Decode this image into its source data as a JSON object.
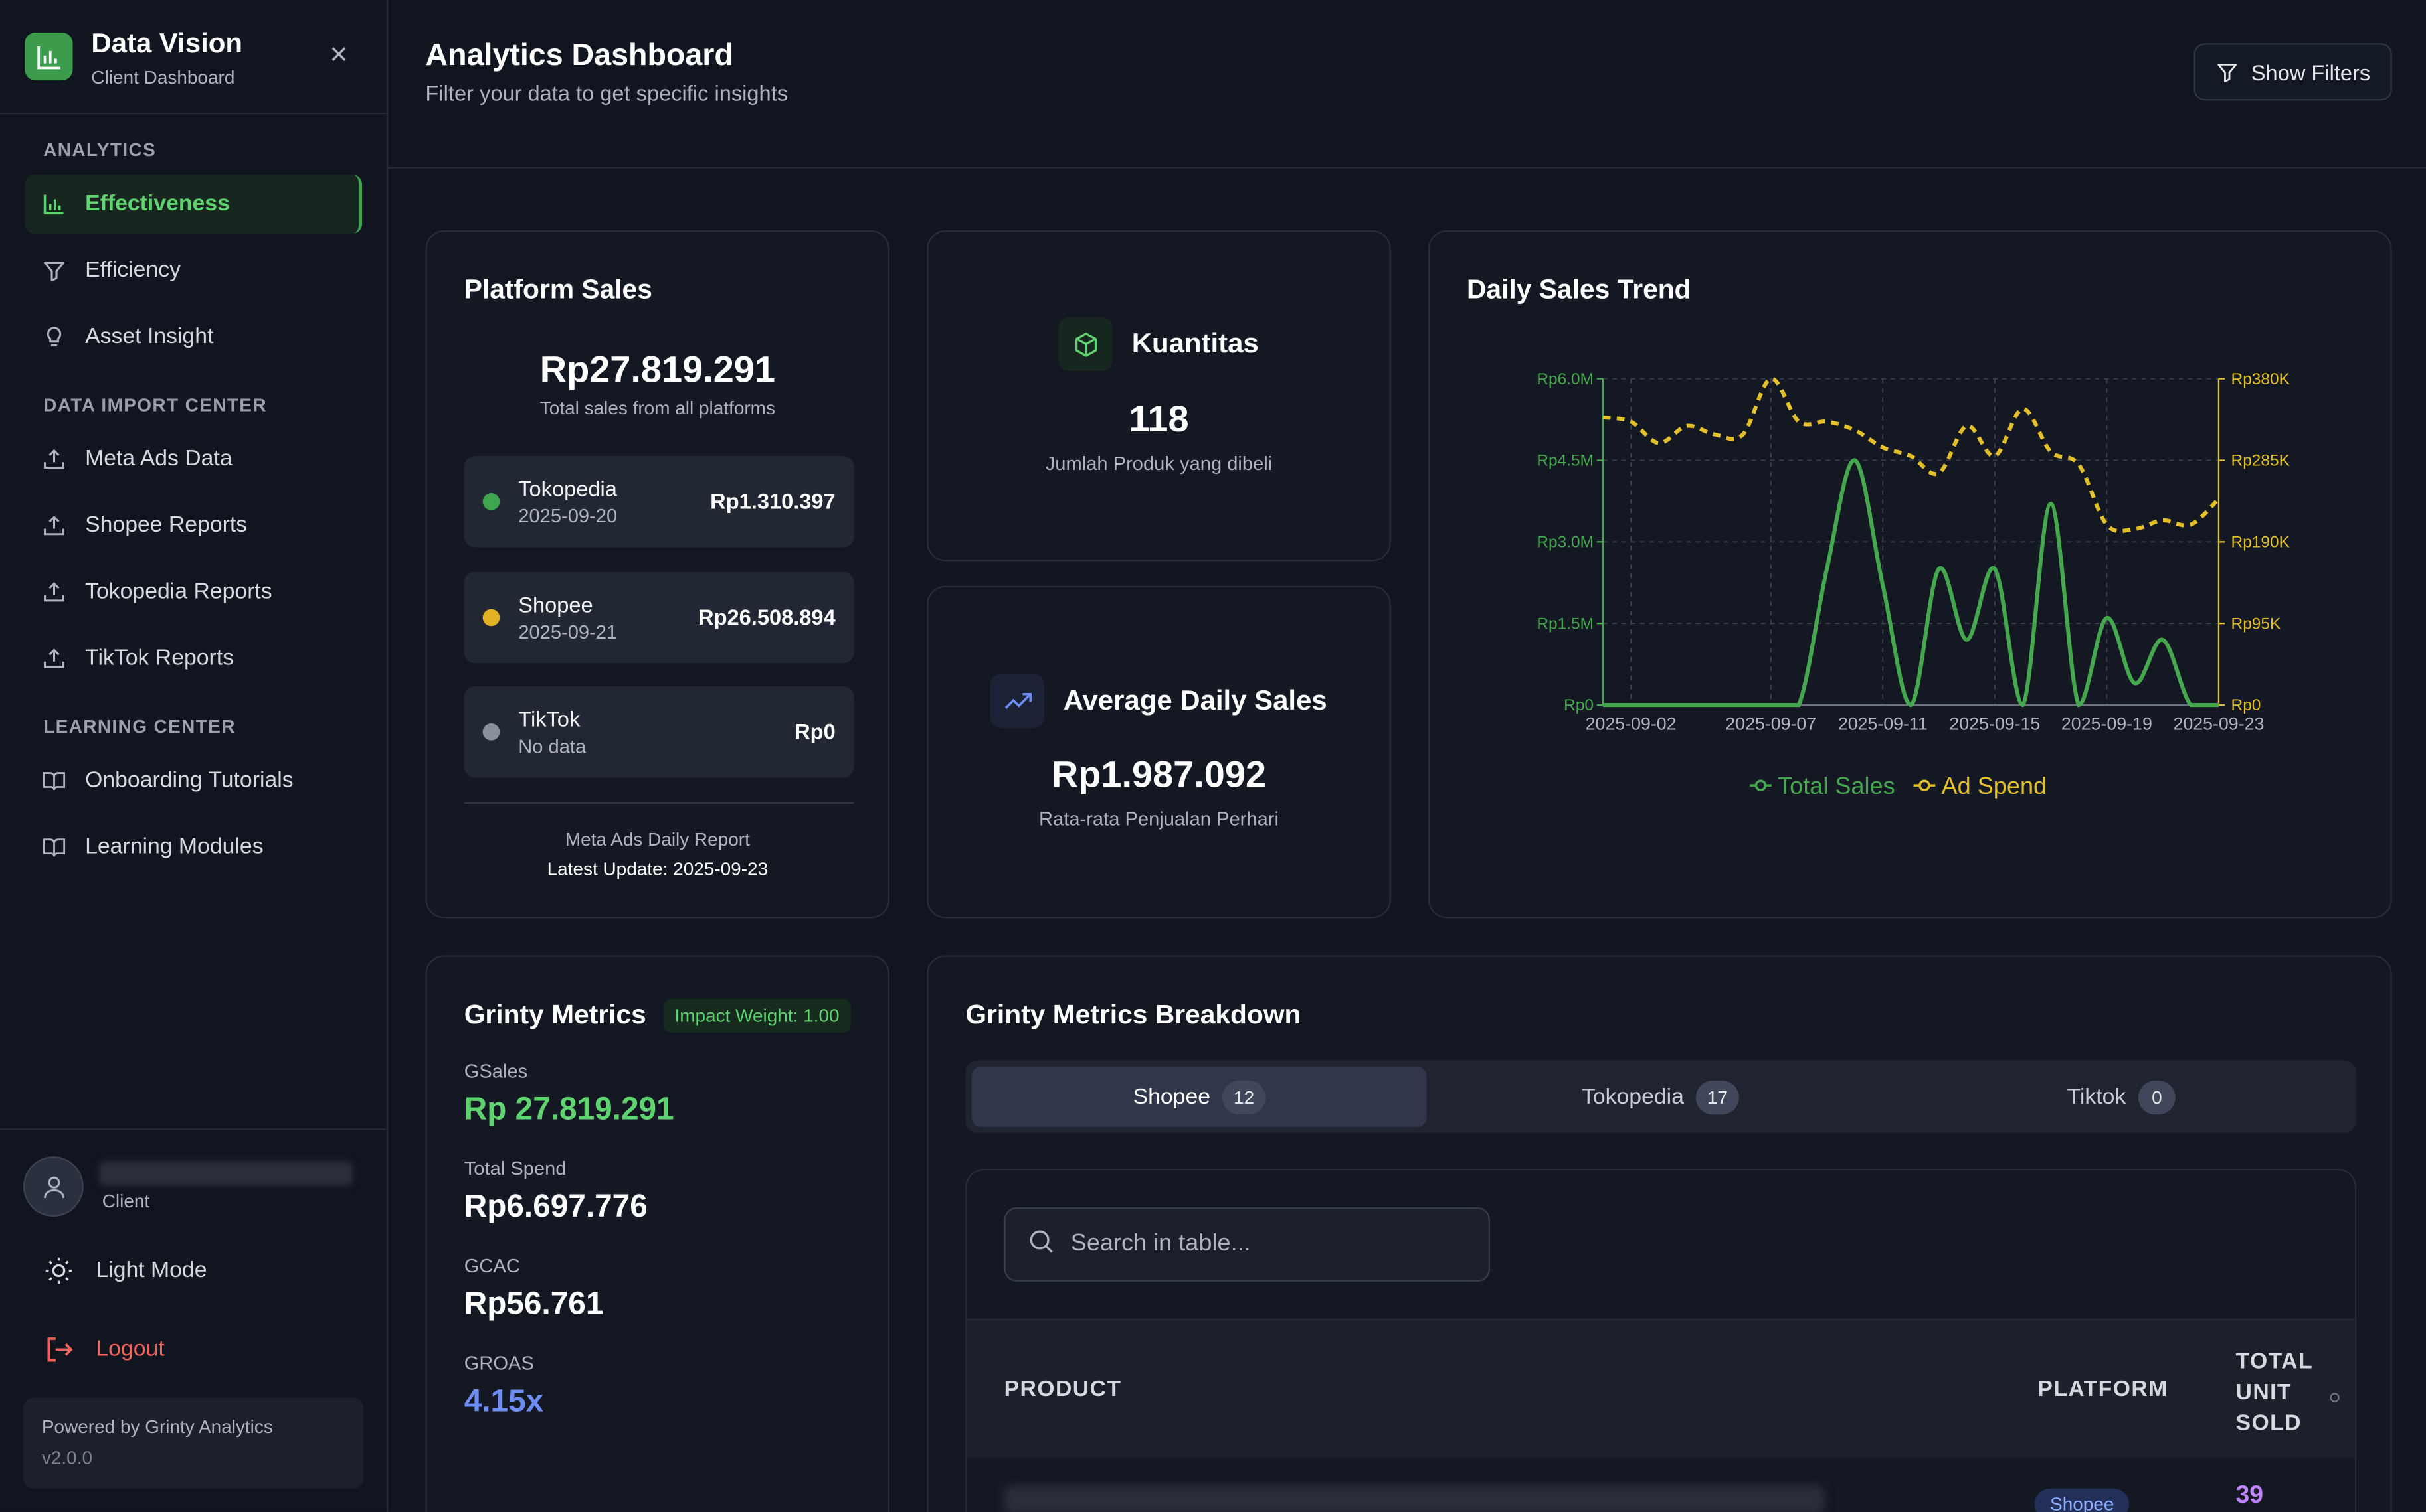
{
  "brand": {
    "title": "Data Vision",
    "subtitle": "Client Dashboard"
  },
  "sidebar": {
    "sections": [
      {
        "label": "ANALYTICS",
        "items": [
          {
            "label": "Effectiveness",
            "icon": "bar-chart-icon",
            "active": true
          },
          {
            "label": "Efficiency",
            "icon": "filter-icon"
          },
          {
            "label": "Asset Insight",
            "icon": "lightbulb-icon"
          }
        ]
      },
      {
        "label": "DATA IMPORT CENTER",
        "items": [
          {
            "label": "Meta Ads Data",
            "icon": "upload-icon"
          },
          {
            "label": "Shopee Reports",
            "icon": "upload-icon"
          },
          {
            "label": "Tokopedia Reports",
            "icon": "upload-icon"
          },
          {
            "label": "TikTok Reports",
            "icon": "upload-icon"
          }
        ]
      },
      {
        "label": "LEARNING CENTER",
        "items": [
          {
            "label": "Onboarding Tutorials",
            "icon": "book-icon"
          },
          {
            "label": "Learning Modules",
            "icon": "book-icon"
          }
        ]
      }
    ],
    "user_role": "Client",
    "light_mode_label": "Light Mode",
    "logout_label": "Logout",
    "powered_by": "Powered by Grinty Analytics",
    "version": "v2.0.0"
  },
  "header": {
    "title": "Analytics Dashboard",
    "subtitle": "Filter your data to get specific insights",
    "filters_label": "Show Filters"
  },
  "platform_sales": {
    "title": "Platform Sales",
    "total": "Rp27.819.291",
    "total_sub": "Total sales from all platforms",
    "rows": [
      {
        "name": "Tokopedia",
        "date": "2025-09-20",
        "value": "Rp1.310.397",
        "color": "#3fa64f"
      },
      {
        "name": "Shopee",
        "date": "2025-09-21",
        "value": "Rp26.508.894",
        "color": "#e3b324"
      },
      {
        "name": "TikTok",
        "date": "No data",
        "value": "Rp0",
        "color": "#8a909b"
      }
    ],
    "footer_label": "Meta Ads Daily Report",
    "footer_update": "Latest Update: 2025-09-23"
  },
  "quantity": {
    "title": "Kuantitas",
    "value": "118",
    "subtitle": "Jumlah Produk yang dibeli"
  },
  "avg_daily": {
    "title": "Average Daily Sales",
    "value": "Rp1.987.092",
    "subtitle": "Rata-rata Penjualan Perhari"
  },
  "chart_title": "Daily Sales Trend",
  "chart_data": {
    "type": "line",
    "title": "Daily Sales Trend",
    "x": [
      "2025-09-01",
      "2025-09-02",
      "2025-09-03",
      "2025-09-04",
      "2025-09-05",
      "2025-09-06",
      "2025-09-07",
      "2025-09-08",
      "2025-09-09",
      "2025-09-10",
      "2025-09-11",
      "2025-09-12",
      "2025-09-13",
      "2025-09-14",
      "2025-09-15",
      "2025-09-16",
      "2025-09-17",
      "2025-09-18",
      "2025-09-19",
      "2025-09-20",
      "2025-09-21",
      "2025-09-22",
      "2025-09-23"
    ],
    "x_tick_labels": [
      "2025-09-02",
      "2025-09-07",
      "2025-09-11",
      "2025-09-15",
      "2025-09-19",
      "2025-09-23"
    ],
    "y_left_ticks": [
      "Rp0",
      "Rp1.5M",
      "Rp3.0M",
      "Rp4.5M",
      "Rp6.0M"
    ],
    "y_right_ticks": [
      "Rp0",
      "Rp95K",
      "Rp190K",
      "Rp285K",
      "Rp380K"
    ],
    "y_left_range": [
      0,
      6000000
    ],
    "y_right_range": [
      0,
      380000
    ],
    "series": [
      {
        "name": "Total Sales",
        "axis": "left",
        "color": "#45a84f",
        "values": [
          0,
          0,
          0,
          0,
          0,
          0,
          0,
          0,
          2500000,
          4500000,
          2200000,
          0,
          2500000,
          1200000,
          2500000,
          0,
          3700000,
          0,
          1600000,
          400000,
          1200000,
          0,
          0
        ]
      },
      {
        "name": "Ad Spend",
        "axis": "right",
        "color": "#e3c02a",
        "values": [
          335000,
          330000,
          305000,
          325000,
          315000,
          315000,
          380000,
          330000,
          330000,
          320000,
          300000,
          290000,
          270000,
          325000,
          290000,
          345000,
          295000,
          280000,
          210000,
          205000,
          215000,
          210000,
          240000
        ]
      }
    ],
    "legend": "bottom-center",
    "grid": true
  },
  "grinty": {
    "title": "Grinty Metrics",
    "impact": "Impact Weight: 1.00",
    "metrics": [
      {
        "label": "GSales",
        "value": "Rp 27.819.291",
        "color": "#5fd36f"
      },
      {
        "label": "Total Spend",
        "value": "Rp6.697.776",
        "color": "#ffffff"
      },
      {
        "label": "GCAC",
        "value": "Rp56.761",
        "color": "#ffffff"
      },
      {
        "label": "GROAS",
        "value": "4.15x",
        "color": "#6f8ef5"
      }
    ]
  },
  "breakdown": {
    "title": "Grinty Metrics Breakdown",
    "tabs": [
      {
        "label": "Shopee",
        "count": "12",
        "active": true
      },
      {
        "label": "Tokopedia",
        "count": "17"
      },
      {
        "label": "Tiktok",
        "count": "0"
      }
    ],
    "search_placeholder": "Search in table...",
    "columns": [
      "PRODUCT",
      "PLATFORM",
      "TOTAL UNIT SOLD"
    ],
    "first_row": {
      "platform": "Shopee",
      "sold": "39"
    }
  }
}
